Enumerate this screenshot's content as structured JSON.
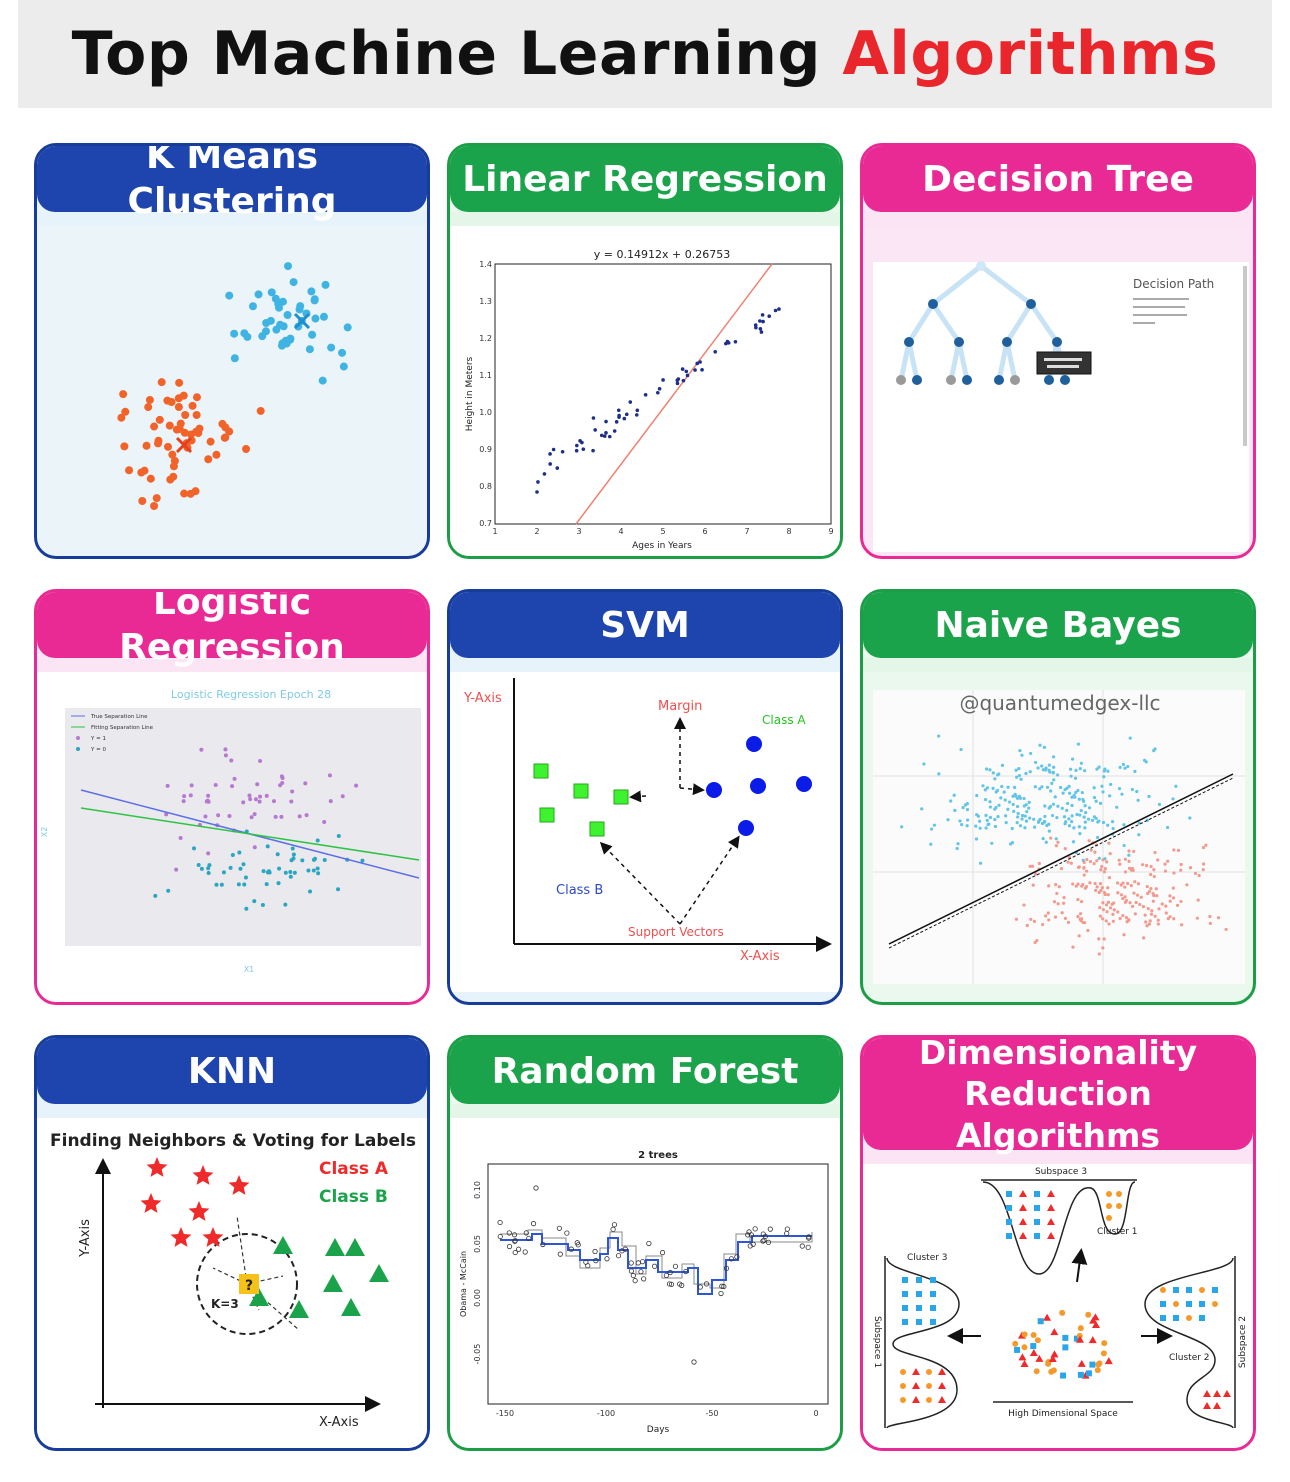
{
  "title": {
    "main": "Top Machine Learning",
    "accent": "Algorithms"
  },
  "cards": {
    "kmeans": {
      "title": "K Means Clustering"
    },
    "linreg": {
      "title": "Linear Regression",
      "plot_title": "y = 0.14912x + 0.26753",
      "xlabel": "Ages in Years",
      "ylabel": "Height in Meters"
    },
    "dtree": {
      "title": "Decision Tree",
      "panel_title": "Decision Path"
    },
    "logreg": {
      "title": "Logistic Regression",
      "plot_title": "Logistic Regression Epoch 28",
      "legend": [
        "True Separation Line",
        "Fitting Separation Line",
        "Y = 1",
        "Y = 0"
      ],
      "xlabel": "X1",
      "ylabel": "X2"
    },
    "svm": {
      "title": "SVM",
      "y_axis": "Y-Axis",
      "x_axis": "X-Axis",
      "margin": "Margin",
      "class_a": "Class A",
      "class_b": "Class B",
      "support": "Support Vectors"
    },
    "nbayes": {
      "title": "Naive Bayes",
      "watermark": "@quantumedgex-llc"
    },
    "knn": {
      "title": "KNN",
      "subtitle": "Finding Neighbors & Voting for Labels",
      "class_a": "Class A",
      "class_b": "Class B",
      "k": "K=3",
      "query": "?",
      "y_axis": "Y-Axis",
      "x_axis": "X-Axis"
    },
    "rforest": {
      "title": "Random Forest",
      "plot_title": "2 trees",
      "xlabel": "Days",
      "ylabel": "Obama - McCain"
    },
    "dimred": {
      "title_line1": "Dimensionality",
      "title_line2": "Reduction Algorithms",
      "subspace1": "Subspace 1",
      "subspace2": "Subspace 2",
      "subspace3": "Subspace 3",
      "cluster1": "Cluster 1",
      "cluster2": "Cluster 2",
      "cluster3": "Cluster 3",
      "high_dim": "High Dimensional Space"
    }
  },
  "colors": {
    "blue_header": "#1d45ad",
    "green_header": "#1aa34a",
    "pink_header": "#ea2a94",
    "accent_red": "#e8262b"
  }
}
